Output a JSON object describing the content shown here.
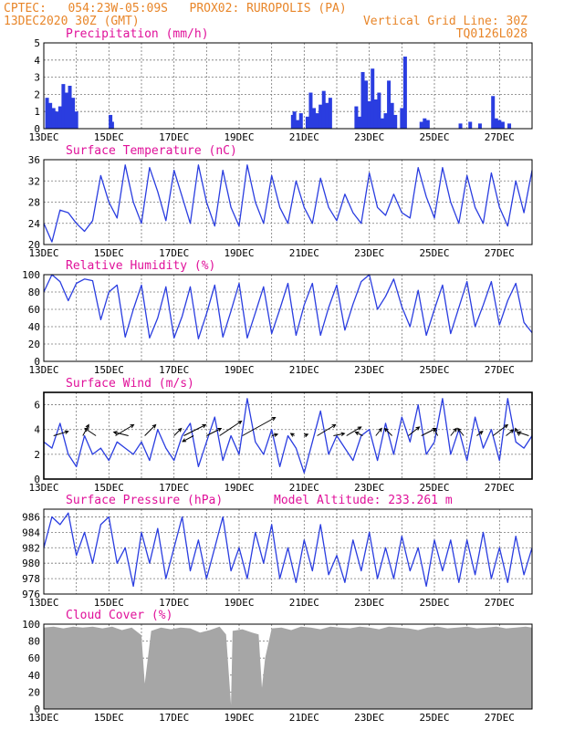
{
  "header": {
    "line1": "CPTEC:   054:23W-05:09S   PROX02: RUROPOLIS (PA)",
    "line2_left": "13DEC2020 30Z (GMT)",
    "line2_right": "Vertical Grid Line: 30Z",
    "line3_right": "TQ0126L028"
  },
  "colors": {
    "header": "#e8862a",
    "title": "#e0119a",
    "series": "#2a3de0",
    "cloud": "#a6a6a6",
    "grid": "#777777",
    "arrow": "#000000"
  },
  "chart_data": [
    {
      "type": "bar",
      "title": "Precipitation (mm/h)",
      "ylim": [
        0,
        5
      ],
      "yticks": [
        0,
        1,
        2,
        3,
        4,
        5
      ],
      "xlim": [
        0,
        15
      ],
      "xtick_labels": [
        "13DEC",
        "15DEC",
        "17DEC",
        "19DEC",
        "21DEC",
        "23DEC",
        "25DEC",
        "27DEC"
      ],
      "xtick_days": [
        0,
        2,
        4,
        6,
        8,
        10,
        12,
        14
      ],
      "x": [
        0.1,
        0.2,
        0.3,
        0.4,
        0.5,
        0.6,
        0.7,
        0.8,
        0.9,
        1.0,
        2.05,
        2.1,
        7.65,
        7.7,
        7.8,
        7.9,
        8.1,
        8.2,
        8.3,
        8.4,
        8.5,
        8.6,
        8.7,
        8.8,
        9.6,
        9.7,
        9.8,
        9.9,
        10.0,
        10.1,
        10.2,
        10.3,
        10.4,
        10.5,
        10.6,
        10.7,
        10.8,
        11.0,
        11.1,
        11.6,
        11.7,
        11.8,
        12.8,
        13.1,
        13.4,
        13.8,
        13.9,
        14.0,
        14.1,
        14.3
      ],
      "values": [
        1.8,
        1.5,
        1.2,
        1.0,
        1.3,
        2.6,
        2.1,
        2.5,
        1.8,
        1.0,
        0.8,
        0.4,
        0.8,
        1.0,
        0.5,
        0.9,
        0.7,
        2.1,
        1.2,
        0.9,
        1.4,
        2.2,
        1.5,
        1.8,
        1.3,
        0.7,
        3.3,
        2.8,
        1.6,
        3.5,
        1.7,
        2.1,
        0.6,
        0.9,
        2.8,
        1.5,
        0.8,
        1.2,
        4.2,
        0.4,
        0.6,
        0.5,
        0.3,
        0.4,
        0.3,
        1.9,
        0.6,
        0.5,
        0.4,
        0.3
      ]
    },
    {
      "type": "line",
      "title": "Surface Temperature (nC)",
      "ylim": [
        20,
        36
      ],
      "yticks": [
        20,
        24,
        28,
        32,
        36
      ],
      "xlim": [
        0,
        15
      ],
      "xtick_labels": [
        "13DEC",
        "15DEC",
        "17DEC",
        "19DEC",
        "21DEC",
        "23DEC",
        "25DEC",
        "27DEC"
      ],
      "xtick_days": [
        0,
        2,
        4,
        6,
        8,
        10,
        12,
        14
      ],
      "x": [
        0,
        0.25,
        0.5,
        0.75,
        1.0,
        1.25,
        1.5,
        1.75,
        2.0,
        2.25,
        2.5,
        2.75,
        3.0,
        3.25,
        3.5,
        3.75,
        4.0,
        4.25,
        4.5,
        4.75,
        5.0,
        5.25,
        5.5,
        5.75,
        6.0,
        6.25,
        6.5,
        6.75,
        7.0,
        7.25,
        7.5,
        7.75,
        8.0,
        8.25,
        8.5,
        8.75,
        9.0,
        9.25,
        9.5,
        9.75,
        10.0,
        10.25,
        10.5,
        10.75,
        11.0,
        11.25,
        11.5,
        11.75,
        12.0,
        12.25,
        12.5,
        12.75,
        13.0,
        13.25,
        13.5,
        13.75,
        14.0,
        14.25,
        14.5,
        14.75,
        15.0
      ],
      "values": [
        24,
        20.5,
        26.5,
        26,
        24,
        22.5,
        24.5,
        33,
        28,
        25,
        35,
        28,
        24,
        34.5,
        30,
        24.5,
        34,
        29,
        24,
        35,
        28,
        23.5,
        34,
        27,
        23.5,
        35,
        28,
        24,
        33,
        27,
        24,
        32,
        27,
        24,
        32.5,
        27,
        24.5,
        29.5,
        26,
        24,
        33.5,
        27,
        25.5,
        29.5,
        26,
        25,
        34.5,
        29,
        25,
        34.5,
        28,
        24,
        33,
        27,
        24,
        33.5,
        27,
        23.5,
        32,
        26,
        34
      ]
    },
    {
      "type": "line",
      "title": "Relative Humidity (%)",
      "ylim": [
        0,
        100
      ],
      "yticks": [
        0,
        20,
        40,
        60,
        80,
        100
      ],
      "xlim": [
        0,
        15
      ],
      "xtick_labels": [
        "13DEC",
        "15DEC",
        "17DEC",
        "19DEC",
        "21DEC",
        "23DEC",
        "25DEC",
        "27DEC"
      ],
      "xtick_days": [
        0,
        2,
        4,
        6,
        8,
        10,
        12,
        14
      ],
      "x": [
        0,
        0.25,
        0.5,
        0.75,
        1.0,
        1.25,
        1.5,
        1.75,
        2.0,
        2.25,
        2.5,
        2.75,
        3.0,
        3.25,
        3.5,
        3.75,
        4.0,
        4.25,
        4.5,
        4.75,
        5.0,
        5.25,
        5.5,
        5.75,
        6.0,
        6.25,
        6.5,
        6.75,
        7.0,
        7.25,
        7.5,
        7.75,
        8.0,
        8.25,
        8.5,
        8.75,
        9.0,
        9.25,
        9.5,
        9.75,
        10.0,
        10.25,
        10.5,
        10.75,
        11.0,
        11.25,
        11.5,
        11.75,
        12.0,
        12.25,
        12.5,
        12.75,
        13.0,
        13.25,
        13.5,
        13.75,
        14.0,
        14.25,
        14.5,
        14.75,
        15.0
      ],
      "values": [
        80,
        100,
        92,
        70,
        90,
        95,
        93,
        48,
        80,
        88,
        28,
        60,
        88,
        27,
        50,
        86,
        27,
        52,
        86,
        26,
        55,
        88,
        28,
        58,
        90,
        27,
        56,
        86,
        32,
        60,
        90,
        30,
        65,
        90,
        30,
        62,
        88,
        36,
        66,
        92,
        100,
        60,
        75,
        95,
        63,
        40,
        82,
        30,
        60,
        88,
        32,
        62,
        92,
        40,
        65,
        92,
        42,
        70,
        90,
        45,
        33
      ]
    },
    {
      "type": "line",
      "title": "Surface Wind (m/s)",
      "ylim": [
        0,
        7
      ],
      "yticks": [
        0,
        2,
        4,
        6
      ],
      "xlim": [
        0,
        15
      ],
      "xtick_labels": [
        "13DEC",
        "15DEC",
        "17DEC",
        "19DEC",
        "21DEC",
        "23DEC",
        "25DEC",
        "27DEC"
      ],
      "xtick_days": [
        0,
        2,
        4,
        6,
        8,
        10,
        12,
        14
      ],
      "x": [
        0,
        0.25,
        0.5,
        0.75,
        1.0,
        1.25,
        1.5,
        1.75,
        2.0,
        2.25,
        2.5,
        2.75,
        3.0,
        3.25,
        3.5,
        3.75,
        4.0,
        4.25,
        4.5,
        4.75,
        5.0,
        5.25,
        5.5,
        5.75,
        6.0,
        6.25,
        6.5,
        6.75,
        7.0,
        7.25,
        7.5,
        7.75,
        8.0,
        8.25,
        8.5,
        8.75,
        9.0,
        9.25,
        9.5,
        9.75,
        10.0,
        10.25,
        10.5,
        10.75,
        11.0,
        11.25,
        11.5,
        11.75,
        12.0,
        12.25,
        12.5,
        12.75,
        13.0,
        13.25,
        13.5,
        13.75,
        14.0,
        14.25,
        14.5,
        14.75,
        15.0
      ],
      "values": [
        3,
        2.5,
        4.5,
        2.0,
        1.0,
        3.5,
        2.0,
        2.5,
        1.5,
        3.0,
        2.5,
        2.0,
        3.0,
        1.5,
        4.0,
        2.5,
        1.5,
        3.5,
        4.5,
        1.0,
        3.0,
        5.0,
        1.5,
        3.5,
        2.0,
        6.5,
        3.0,
        2.0,
        4.0,
        1.0,
        3.5,
        2.5,
        0.5,
        3.0,
        5.5,
        2.0,
        3.5,
        2.5,
        1.5,
        3.5,
        4.0,
        1.5,
        4.5,
        2.0,
        5.0,
        3.0,
        6.0,
        2.0,
        3.0,
        6.5,
        2.0,
        4.0,
        1.5,
        5.0,
        2.5,
        4.0,
        1.5,
        6.5,
        3.0,
        2.5,
        3.5
      ],
      "arrows": {
        "x": [
          0.3,
          1.2,
          1.6,
          2.2,
          2.6,
          3.1,
          4.0,
          4.3,
          4.6,
          5.0,
          5.4,
          6.1,
          7.0,
          7.7,
          8.0,
          8.4,
          8.9,
          9.3,
          9.8,
          10.2,
          10.7,
          11.2,
          11.6,
          12.1,
          12.5,
          12.9,
          13.3,
          13.8,
          14.2,
          14.6,
          14.9
        ],
        "u": [
          2.0,
          0.8,
          -1.5,
          2.5,
          -2.0,
          1.5,
          1.0,
          3.0,
          -1.5,
          2.0,
          3.0,
          4.5,
          0.8,
          -0.5,
          0.5,
          2.5,
          1.5,
          2.0,
          -1.0,
          0.8,
          -1.0,
          1.5,
          2.0,
          -0.5,
          0.8,
          -0.8,
          0.8,
          2.0,
          1.0,
          -0.5,
          -1.5
        ],
        "v": [
          0.6,
          1.5,
          1.0,
          1.5,
          0.5,
          1.5,
          1.0,
          1.5,
          -0.8,
          1.0,
          2.0,
          2.5,
          0.2,
          0.3,
          0.2,
          1.5,
          0.3,
          1.2,
          0.5,
          1.0,
          1.0,
          1.2,
          1.0,
          1.0,
          1.0,
          1.0,
          0.6,
          1.5,
          0.8,
          1.0,
          0.5
        ]
      }
    },
    {
      "type": "line",
      "title": "Surface Pressure (hPa)",
      "annotation": "Model Altitude: 233.261 m",
      "ylim": [
        976,
        987
      ],
      "yticks": [
        976,
        978,
        980,
        982,
        984,
        986
      ],
      "xlim": [
        0,
        15
      ],
      "xtick_labels": [
        "13DEC",
        "15DEC",
        "17DEC",
        "19DEC",
        "21DEC",
        "23DEC",
        "25DEC",
        "27DEC"
      ],
      "xtick_days": [
        0,
        2,
        4,
        6,
        8,
        10,
        12,
        14
      ],
      "x": [
        0,
        0.25,
        0.5,
        0.75,
        1.0,
        1.25,
        1.5,
        1.75,
        2.0,
        2.25,
        2.5,
        2.75,
        3.0,
        3.25,
        3.5,
        3.75,
        4.0,
        4.25,
        4.5,
        4.75,
        5.0,
        5.25,
        5.5,
        5.75,
        6.0,
        6.25,
        6.5,
        6.75,
        7.0,
        7.25,
        7.5,
        7.75,
        8.0,
        8.25,
        8.5,
        8.75,
        9.0,
        9.25,
        9.5,
        9.75,
        10.0,
        10.25,
        10.5,
        10.75,
        11.0,
        11.25,
        11.5,
        11.75,
        12.0,
        12.25,
        12.5,
        12.75,
        13.0,
        13.25,
        13.5,
        13.75,
        14.0,
        14.25,
        14.5,
        14.75,
        15.0
      ],
      "values": [
        982,
        986,
        985,
        986.5,
        981,
        984,
        980,
        985,
        986,
        980,
        982,
        977,
        984,
        980,
        984.5,
        978,
        982,
        986,
        979,
        983,
        978,
        982,
        986,
        979,
        982,
        978,
        984,
        980,
        985,
        978,
        982,
        977.5,
        983,
        979,
        985,
        978.5,
        981,
        977.5,
        983,
        979,
        984,
        978,
        982,
        978,
        983.5,
        979,
        982,
        977,
        983,
        979,
        983,
        977.5,
        983,
        978.5,
        984,
        978,
        982,
        977.5,
        983.5,
        978.5,
        982
      ]
    },
    {
      "type": "area",
      "title": "Cloud Cover (%)",
      "ylim": [
        0,
        100
      ],
      "yticks": [
        0,
        20,
        40,
        60,
        80,
        100
      ],
      "xlim": [
        0,
        15
      ],
      "xtick_labels": [
        "13DEC",
        "15DEC",
        "17DEC",
        "19DEC",
        "21DEC",
        "23DEC",
        "25DEC",
        "27DEC"
      ],
      "xtick_days": [
        0,
        2,
        4,
        6,
        8,
        10,
        12,
        14
      ],
      "x": [
        0,
        0.3,
        0.6,
        0.9,
        1.2,
        1.5,
        1.8,
        2.1,
        2.4,
        2.7,
        3.0,
        3.1,
        3.3,
        3.6,
        3.9,
        4.2,
        4.5,
        4.8,
        5.1,
        5.4,
        5.6,
        5.75,
        5.8,
        6.1,
        6.4,
        6.6,
        6.7,
        6.8,
        7.0,
        7.3,
        7.6,
        7.9,
        8.2,
        8.5,
        8.8,
        9.1,
        9.4,
        9.7,
        10.0,
        10.3,
        10.6,
        10.9,
        11.2,
        11.5,
        11.8,
        12.1,
        12.4,
        12.7,
        13.0,
        13.3,
        13.6,
        13.9,
        14.2,
        14.5,
        14.8,
        15.0
      ],
      "values": [
        96,
        97,
        95,
        97,
        96,
        97,
        95,
        97,
        93,
        96,
        87,
        30,
        92,
        96,
        94,
        96,
        95,
        90,
        93,
        97,
        88,
        5,
        92,
        94,
        90,
        88,
        25,
        60,
        95,
        96,
        93,
        97,
        96,
        94,
        97,
        96,
        95,
        97,
        96,
        94,
        97,
        96,
        95,
        93,
        96,
        97,
        95,
        96,
        97,
        95,
        96,
        97,
        95,
        96,
        97,
        96
      ]
    }
  ]
}
